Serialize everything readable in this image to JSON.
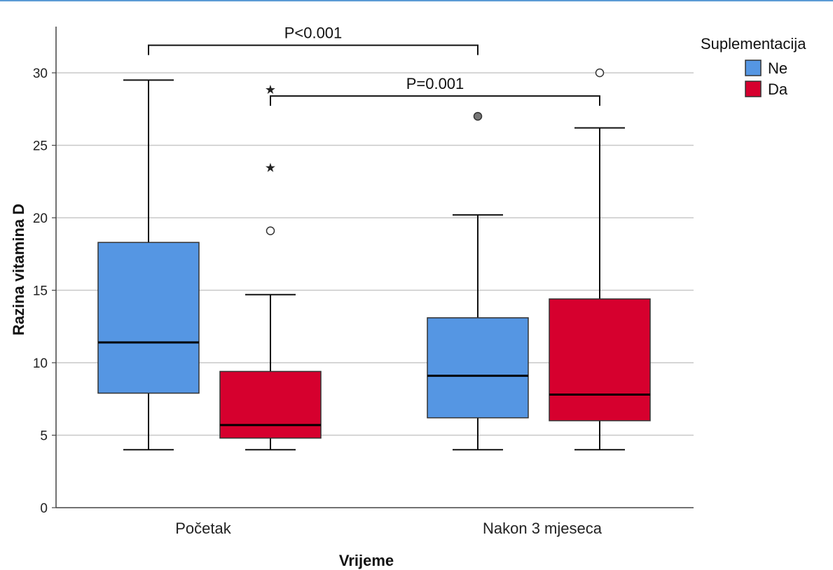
{
  "chart_data": {
    "type": "boxplot",
    "xlabel": "Vrijeme",
    "ylabel": "Razina vitamina D",
    "ylim": [
      0,
      33
    ],
    "yticks": [
      0,
      5,
      10,
      15,
      20,
      25,
      30
    ],
    "grid": true,
    "categories": [
      "Početak",
      "Nakon 3 mjeseca"
    ],
    "legend": {
      "title": "Suplementacija",
      "placement": "top-right",
      "entries": [
        {
          "label": "Ne",
          "color": "#5596e3"
        },
        {
          "label": "Da",
          "color": "#d6002e"
        }
      ]
    },
    "boxes": [
      {
        "category": "Početak",
        "group": "Ne",
        "whisker_low": 4,
        "q1": 7.9,
        "median": 11.4,
        "q3": 18.3,
        "whisker_high": 29.5,
        "outliers": [],
        "extremes": []
      },
      {
        "category": "Početak",
        "group": "Da",
        "whisker_low": 4,
        "q1": 4.8,
        "median": 5.7,
        "q3": 9.4,
        "whisker_high": 14.7,
        "outliers": [
          19.1
        ],
        "extremes": [
          23.5,
          28.9
        ]
      },
      {
        "category": "Nakon 3 mjeseca",
        "group": "Ne",
        "whisker_low": 4,
        "q1": 6.2,
        "median": 9.1,
        "q3": 13.1,
        "whisker_high": 20.2,
        "outliers": [
          27
        ],
        "extremes": []
      },
      {
        "category": "Nakon 3 mjeseca",
        "group": "Da",
        "whisker_low": 4,
        "q1": 6.0,
        "median": 7.8,
        "q3": 14.4,
        "whisker_high": 26.2,
        "outliers": [
          30
        ],
        "extremes": []
      }
    ],
    "annotations": [
      {
        "text": "P<0.001",
        "from_box": 0,
        "to_box": 2,
        "y": 31.9
      },
      {
        "text": "P=0.001",
        "from_box": 1,
        "to_box": 3,
        "y": 28.4
      }
    ]
  }
}
